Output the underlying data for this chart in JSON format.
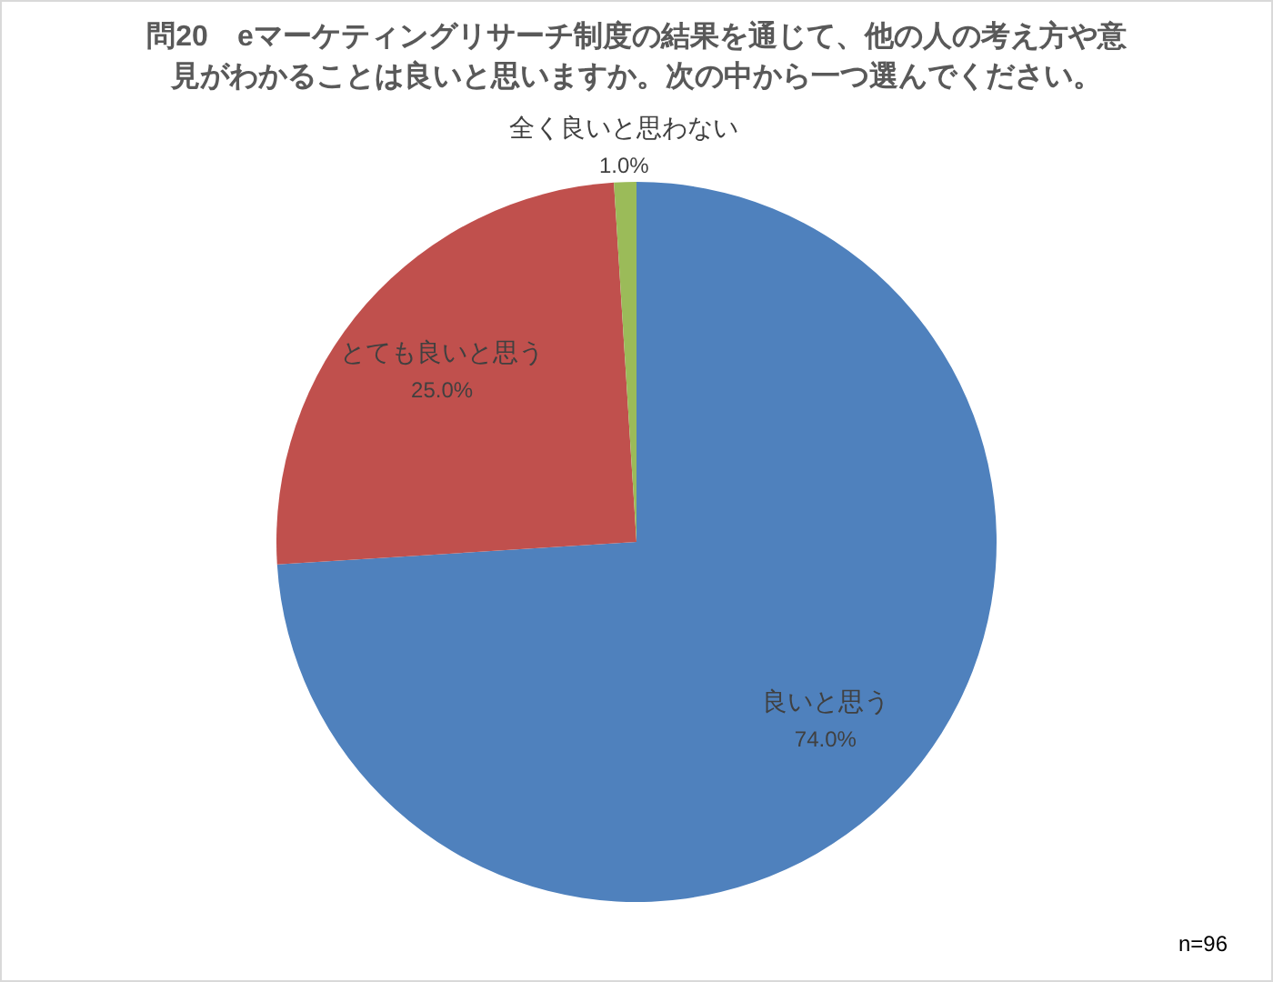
{
  "chart_data": {
    "type": "pie",
    "title": "問20　eマーケティングリサーチ制度の結果を通じて、他の人の考え方や意見がわかることは良いと思いますか。次の中から一つ選んでください。",
    "categories": [
      "良いと思う",
      "とても良いと思う",
      "全く良いと思わない"
    ],
    "values": [
      74.0,
      25.0,
      1.0
    ],
    "colors": [
      "#4f81bd",
      "#c0504d",
      "#9bbb59"
    ],
    "value_labels": [
      "74.0%",
      "25.0%",
      "1.0%"
    ],
    "annotations": [
      "n=96"
    ]
  }
}
